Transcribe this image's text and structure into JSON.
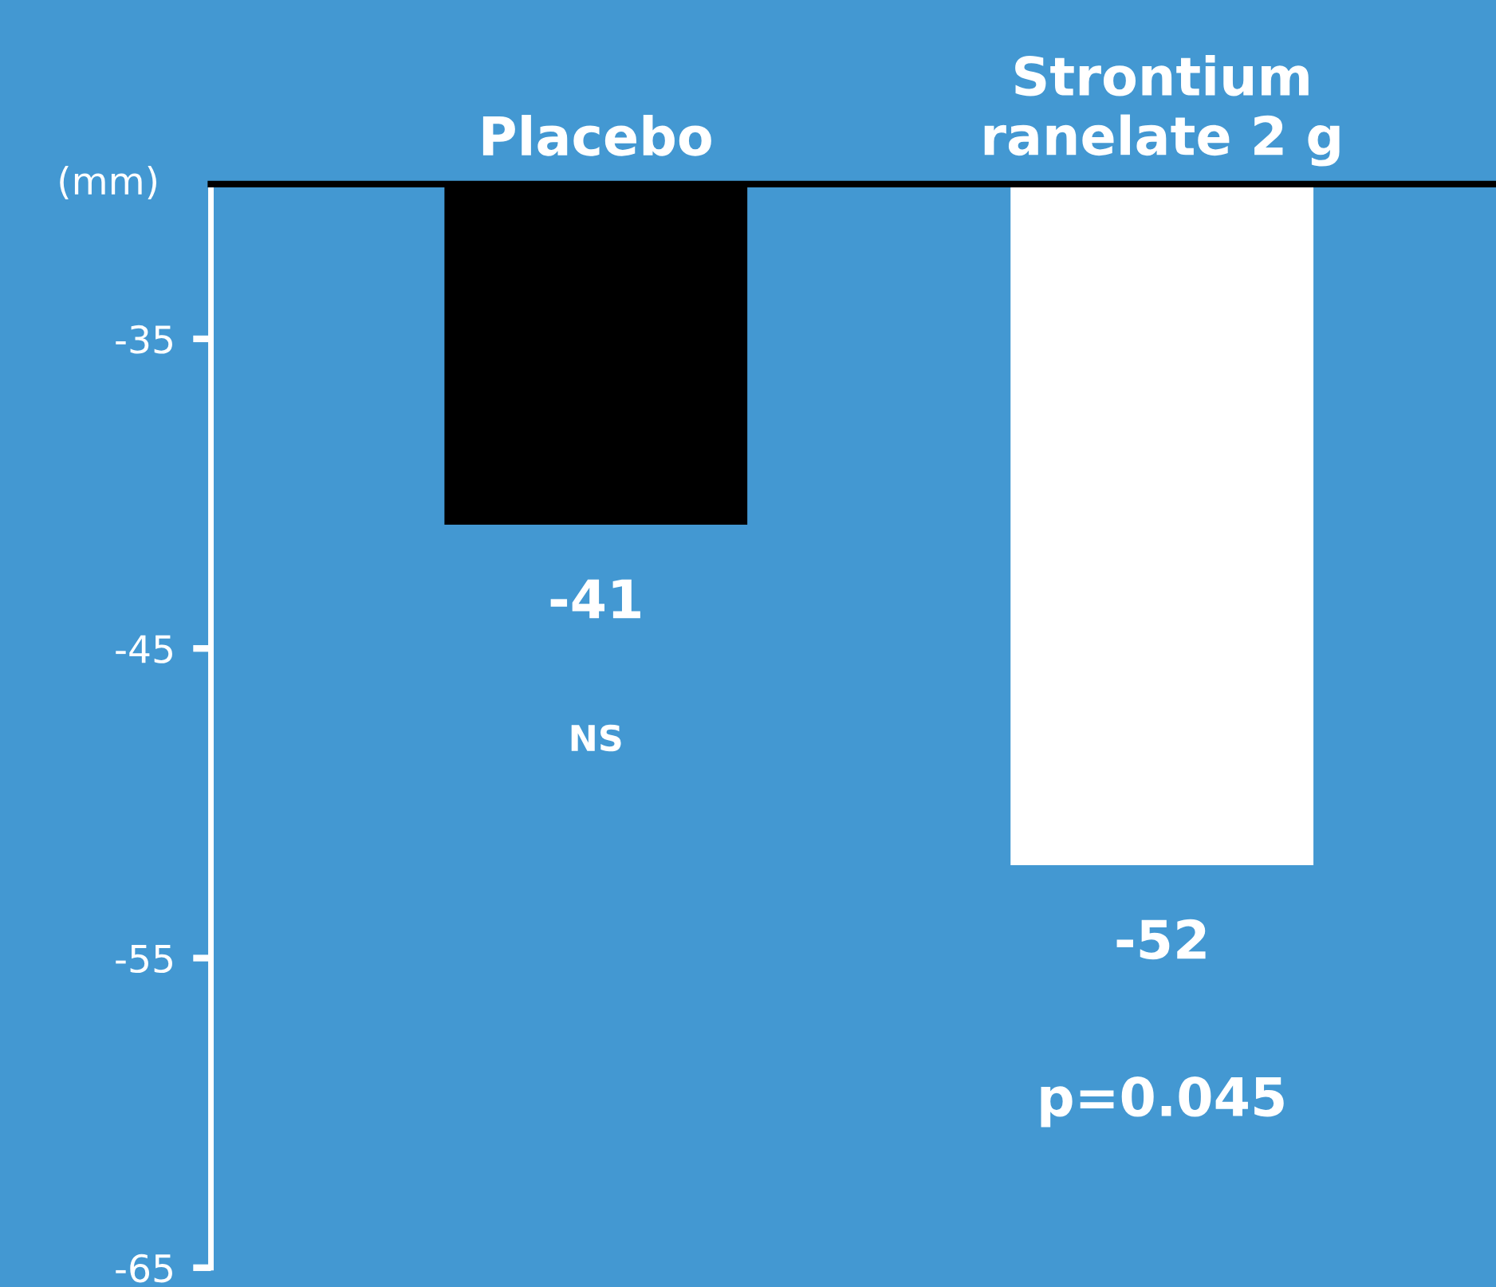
{
  "chart_data": {
    "type": "bar",
    "ylabel": "(mm)",
    "categories": [
      "Placebo",
      "Strontium\nranelate 2 g"
    ],
    "values": [
      -41,
      -52
    ],
    "colors": [
      "#000000",
      "#ffffff"
    ],
    "ylim": [
      -65,
      -30
    ],
    "yticks": [
      -35,
      -45,
      -55,
      -65
    ],
    "data_labels": true,
    "grid": false,
    "annotations": [
      "NS",
      "p=0.045"
    ]
  }
}
